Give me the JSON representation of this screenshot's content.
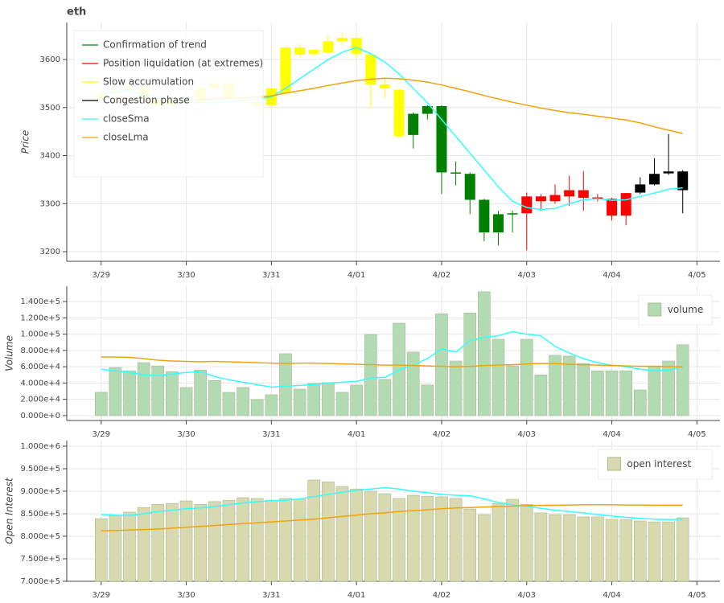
{
  "chart_data": [
    {
      "type": "candlestick",
      "title": "eth",
      "y_label": "Price",
      "x": [
        0,
        4,
        8,
        12,
        16,
        20,
        24,
        28,
        32,
        36,
        40,
        44,
        48,
        52,
        56,
        60,
        64,
        68,
        72,
        76,
        80,
        84,
        88,
        92,
        96,
        100,
        104,
        108,
        112,
        116,
        120,
        124,
        128,
        132,
        136,
        140,
        144,
        148,
        152,
        156,
        160,
        164
      ],
      "xlim": [
        -9.7,
        174.5
      ],
      "xticks": [
        {
          "value": 0,
          "label": "3/29"
        },
        {
          "value": 24,
          "label": "3/30"
        },
        {
          "value": 48,
          "label": "3/31"
        },
        {
          "value": 72,
          "label": "4/01"
        },
        {
          "value": 96,
          "label": "4/02"
        },
        {
          "value": 120,
          "label": "4/03"
        },
        {
          "value": 144,
          "label": "4/04"
        },
        {
          "value": 168,
          "label": "4/05"
        }
      ],
      "ylim": [
        3180,
        3677
      ],
      "yticks": [
        3200,
        3300,
        3400,
        3500,
        3600
      ],
      "grid": true,
      "open": [
        3520,
        3530,
        3535,
        3540,
        3520,
        3505,
        3515,
        3510,
        3540,
        3550,
        3520,
        3512,
        3505,
        3530,
        3625,
        3612,
        3615,
        3638,
        3645,
        3610,
        3548,
        3537,
        3443,
        3487,
        3503,
        3365,
        3362,
        3308,
        3240,
        3278,
        3280,
        3315,
        3305,
        3315,
        3328,
        3313,
        3310,
        3275,
        3323,
        3340,
        3363,
        3367
      ],
      "high": [
        3540,
        3545,
        3550,
        3548,
        3530,
        3520,
        3525,
        3545,
        3560,
        3555,
        3530,
        3525,
        3542,
        3628,
        3632,
        3622,
        3650,
        3652,
        3648,
        3615,
        3560,
        3540,
        3490,
        3505,
        3505,
        3388,
        3365,
        3310,
        3285,
        3285,
        3323,
        3320,
        3340,
        3358,
        3368,
        3320,
        3312,
        3322,
        3355,
        3395,
        3445,
        3370
      ],
      "low": [
        3510,
        3520,
        3525,
        3515,
        3500,
        3495,
        3500,
        3505,
        3530,
        3515,
        3505,
        3500,
        3500,
        3525,
        3605,
        3608,
        3612,
        3632,
        3605,
        3500,
        3520,
        3435,
        3415,
        3475,
        3320,
        3338,
        3278,
        3222,
        3213,
        3240,
        3203,
        3285,
        3300,
        3295,
        3285,
        3305,
        3265,
        3255,
        3320,
        3338,
        3360,
        3280
      ],
      "close": [
        3530,
        3535,
        3540,
        3520,
        3505,
        3515,
        3510,
        3540,
        3550,
        3520,
        3512,
        3505,
        3540,
        3625,
        3610,
        3620,
        3638,
        3645,
        3612,
        3548,
        3540,
        3440,
        3487,
        3503,
        3365,
        3363,
        3308,
        3240,
        3278,
        3280,
        3315,
        3305,
        3318,
        3328,
        3312,
        3310,
        3275,
        3322,
        3340,
        3362,
        3367,
        3328
      ],
      "phase": [
        "Slow accumulation",
        "Slow accumulation",
        "Slow accumulation",
        "Slow accumulation",
        "Slow accumulation",
        "Slow accumulation",
        "Slow accumulation",
        "Slow accumulation",
        "Slow accumulation",
        "Slow accumulation",
        "Slow accumulation",
        "Slow accumulation",
        "Slow accumulation",
        "Slow accumulation",
        "Slow accumulation",
        "Slow accumulation",
        "Slow accumulation",
        "Slow accumulation",
        "Slow accumulation",
        "Slow accumulation",
        "Slow accumulation",
        "Slow accumulation",
        "Confirmation of trend",
        "Confirmation of trend",
        "Confirmation of trend",
        "Confirmation of trend",
        "Confirmation of trend",
        "Confirmation of trend",
        "Confirmation of trend",
        "Confirmation of trend",
        "Position liquidation (at extremes)",
        "Position liquidation (at extremes)",
        "Position liquidation (at extremes)",
        "Position liquidation (at extremes)",
        "Position liquidation (at extremes)",
        "Position liquidation (at extremes)",
        "Position liquidation (at extremes)",
        "Position liquidation (at extremes)",
        "Congestion phase",
        "Congestion phase",
        "Congestion phase",
        "Congestion phase"
      ],
      "phases": [
        {
          "name": "Confirmation of trend",
          "color": "#008000"
        },
        {
          "name": "Position liquidation (at extremes)",
          "color": "#ff0000"
        },
        {
          "name": "Slow accumulation",
          "color": "#ffff00"
        },
        {
          "name": "Congestion phase",
          "color": "#000000"
        }
      ],
      "series": [
        {
          "name": "closeSma",
          "color": "#33ffff",
          "values": [
            3530,
            3532,
            3535,
            3528,
            3520,
            3515,
            3512,
            3510,
            3510,
            3512,
            3515,
            3518,
            3522,
            3540,
            3560,
            3580,
            3600,
            3615,
            3625,
            3612,
            3595,
            3570,
            3540,
            3510,
            3475,
            3440,
            3405,
            3370,
            3335,
            3305,
            3292,
            3288,
            3290,
            3300,
            3308,
            3310,
            3307,
            3308,
            3315,
            3322,
            3330,
            3333
          ]
        },
        {
          "name": "closeLma",
          "color": "#f0a30a",
          "values": [
            3510,
            3511,
            3512,
            3513,
            3514,
            3515,
            3516,
            3517,
            3518,
            3519,
            3520,
            3522,
            3524,
            3530,
            3535,
            3540,
            3546,
            3551,
            3556,
            3559,
            3561,
            3560,
            3557,
            3553,
            3547,
            3540,
            3533,
            3525,
            3518,
            3511,
            3505,
            3499,
            3494,
            3489,
            3486,
            3482,
            3478,
            3474,
            3468,
            3460,
            3453,
            3446
          ]
        }
      ],
      "legend": "top-left"
    },
    {
      "type": "bar",
      "y_label": "Volume",
      "x": [
        0,
        4,
        8,
        12,
        16,
        20,
        24,
        28,
        32,
        36,
        40,
        44,
        48,
        52,
        56,
        60,
        64,
        68,
        72,
        76,
        80,
        84,
        88,
        92,
        96,
        100,
        104,
        108,
        112,
        116,
        120,
        124,
        128,
        132,
        136,
        140,
        144,
        148,
        152,
        156,
        160,
        164
      ],
      "xlim": [
        -9.7,
        174.5
      ],
      "xticks": [
        {
          "value": 0,
          "label": "3/29"
        },
        {
          "value": 24,
          "label": "3/30"
        },
        {
          "value": 48,
          "label": "3/31"
        },
        {
          "value": 72,
          "label": "4/01"
        },
        {
          "value": 96,
          "label": "4/02"
        },
        {
          "value": 120,
          "label": "4/03"
        },
        {
          "value": 144,
          "label": "4/04"
        },
        {
          "value": 168,
          "label": "4/05"
        }
      ],
      "ylim": [
        -6000,
        158800
      ],
      "yticks": [
        {
          "value": 0,
          "label": "0.000e+0"
        },
        {
          "value": 20000,
          "label": "2.000e+4"
        },
        {
          "value": 40000,
          "label": "4.000e+4"
        },
        {
          "value": 60000,
          "label": "6.000e+4"
        },
        {
          "value": 80000,
          "label": "8.000e+4"
        },
        {
          "value": 100000,
          "label": "1.000e+5"
        },
        {
          "value": 120000,
          "label": "1.200e+5"
        },
        {
          "value": 140000,
          "label": "1.400e+5"
        }
      ],
      "grid": true,
      "bars": {
        "name": "volume",
        "color": "#b3dbb3",
        "values": [
          28600,
          59000,
          55000,
          65000,
          61000,
          54000,
          34500,
          56000,
          43000,
          28500,
          34500,
          19700,
          25600,
          76000,
          32500,
          39500,
          40400,
          28600,
          37500,
          99600,
          44400,
          113400,
          78000,
          37500,
          125000,
          67000,
          126000,
          152000,
          93700,
          61000,
          93700,
          50000,
          74000,
          73000,
          64000,
          55000,
          55000,
          55000,
          31500,
          61000,
          67000,
          87000
        ]
      },
      "lines": [
        {
          "color": "#33ffff",
          "values": [
            57000,
            55000,
            53000,
            50000,
            49000,
            51000,
            53000,
            54000,
            48000,
            44000,
            41000,
            38000,
            35000,
            36000,
            37000,
            38000,
            40000,
            41000,
            42000,
            46000,
            47000,
            56000,
            62000,
            70000,
            82000,
            78000,
            92000,
            96000,
            98000,
            103000,
            100000,
            98000,
            85000,
            77000,
            70000,
            65000,
            62000,
            60000,
            57000,
            55000,
            56000,
            60000
          ]
        },
        {
          "color": "#f0a30a",
          "values": [
            72000,
            72000,
            71500,
            70000,
            68000,
            67000,
            66500,
            66000,
            66500,
            66000,
            65500,
            65000,
            64500,
            64000,
            64500,
            64500,
            64000,
            63500,
            63000,
            62500,
            62000,
            62000,
            61500,
            61000,
            60500,
            60000,
            60500,
            61500,
            62000,
            62500,
            63500,
            64000,
            64000,
            63000,
            62500,
            62000,
            61500,
            61000,
            60500,
            60500,
            60000,
            60000
          ]
        }
      ],
      "legend": "top-right"
    },
    {
      "type": "bar",
      "y_label": "Open Interest",
      "x": [
        0,
        4,
        8,
        12,
        16,
        20,
        24,
        28,
        32,
        36,
        40,
        44,
        48,
        52,
        56,
        60,
        64,
        68,
        72,
        76,
        80,
        84,
        88,
        92,
        96,
        100,
        104,
        108,
        112,
        116,
        120,
        124,
        128,
        132,
        136,
        140,
        144,
        148,
        152,
        156,
        160,
        164
      ],
      "xlim": [
        -9.7,
        174.5
      ],
      "xticks": [
        {
          "value": 0,
          "label": "3/29"
        },
        {
          "value": 24,
          "label": "3/30"
        },
        {
          "value": 48,
          "label": "3/31"
        },
        {
          "value": 72,
          "label": "4/01"
        },
        {
          "value": 96,
          "label": "4/02"
        },
        {
          "value": 120,
          "label": "4/03"
        },
        {
          "value": 144,
          "label": "4/04"
        },
        {
          "value": 168,
          "label": "4/05"
        }
      ],
      "ylim": [
        700000,
        1012500
      ],
      "yticks": [
        {
          "value": 700000,
          "label": "7.000e+5"
        },
        {
          "value": 750000,
          "label": "7.500e+5"
        },
        {
          "value": 800000,
          "label": "8.000e+5"
        },
        {
          "value": 850000,
          "label": "8.500e+5"
        },
        {
          "value": 900000,
          "label": "9.000e+5"
        },
        {
          "value": 950000,
          "label": "9.500e+5"
        },
        {
          "value": 1000000,
          "label": "1.000e+6"
        }
      ],
      "grid": true,
      "bars": {
        "name": "open interest",
        "color": "#d9d9b0",
        "values": [
          839000,
          846000,
          853600,
          864000,
          871000,
          873000,
          878500,
          871000,
          877000,
          880000,
          885700,
          884000,
          880000,
          884000,
          882000,
          925000,
          921000,
          910700,
          905000,
          900000,
          894600,
          884000,
          891000,
          889000,
          887500,
          884000,
          860700,
          848000,
          873000,
          882000,
          871000,
          852000,
          848000,
          848000,
          843000,
          843000,
          837500,
          837500,
          834000,
          832000,
          832000,
          841000
        ]
      },
      "lines": [
        {
          "color": "#33ffff",
          "values": [
            848000,
            847000,
            846000,
            850000,
            855000,
            858000,
            861000,
            863000,
            866000,
            870000,
            874000,
            877000,
            879000,
            880000,
            883000,
            888000,
            893000,
            898000,
            902000,
            905000,
            908000,
            905000,
            900000,
            897000,
            893000,
            891000,
            890000,
            883000,
            875000,
            870000,
            867000,
            862000,
            858000,
            855000,
            852000,
            848000,
            845000,
            842000,
            840000,
            838000,
            837000,
            838000
          ]
        },
        {
          "color": "#f0a30a",
          "values": [
            812000,
            813000,
            814000,
            815000,
            816000,
            818000,
            820000,
            822000,
            824000,
            826000,
            828000,
            830000,
            832000,
            834000,
            836000,
            838000,
            841000,
            844000,
            847000,
            850000,
            852000,
            855000,
            857000,
            859000,
            861000,
            863000,
            864000,
            865000,
            866000,
            867000,
            868000,
            868500,
            869000,
            869500,
            870000,
            870000,
            870000,
            869500,
            869500,
            869000,
            869000,
            869000
          ]
        }
      ],
      "legend": "top-right"
    }
  ]
}
